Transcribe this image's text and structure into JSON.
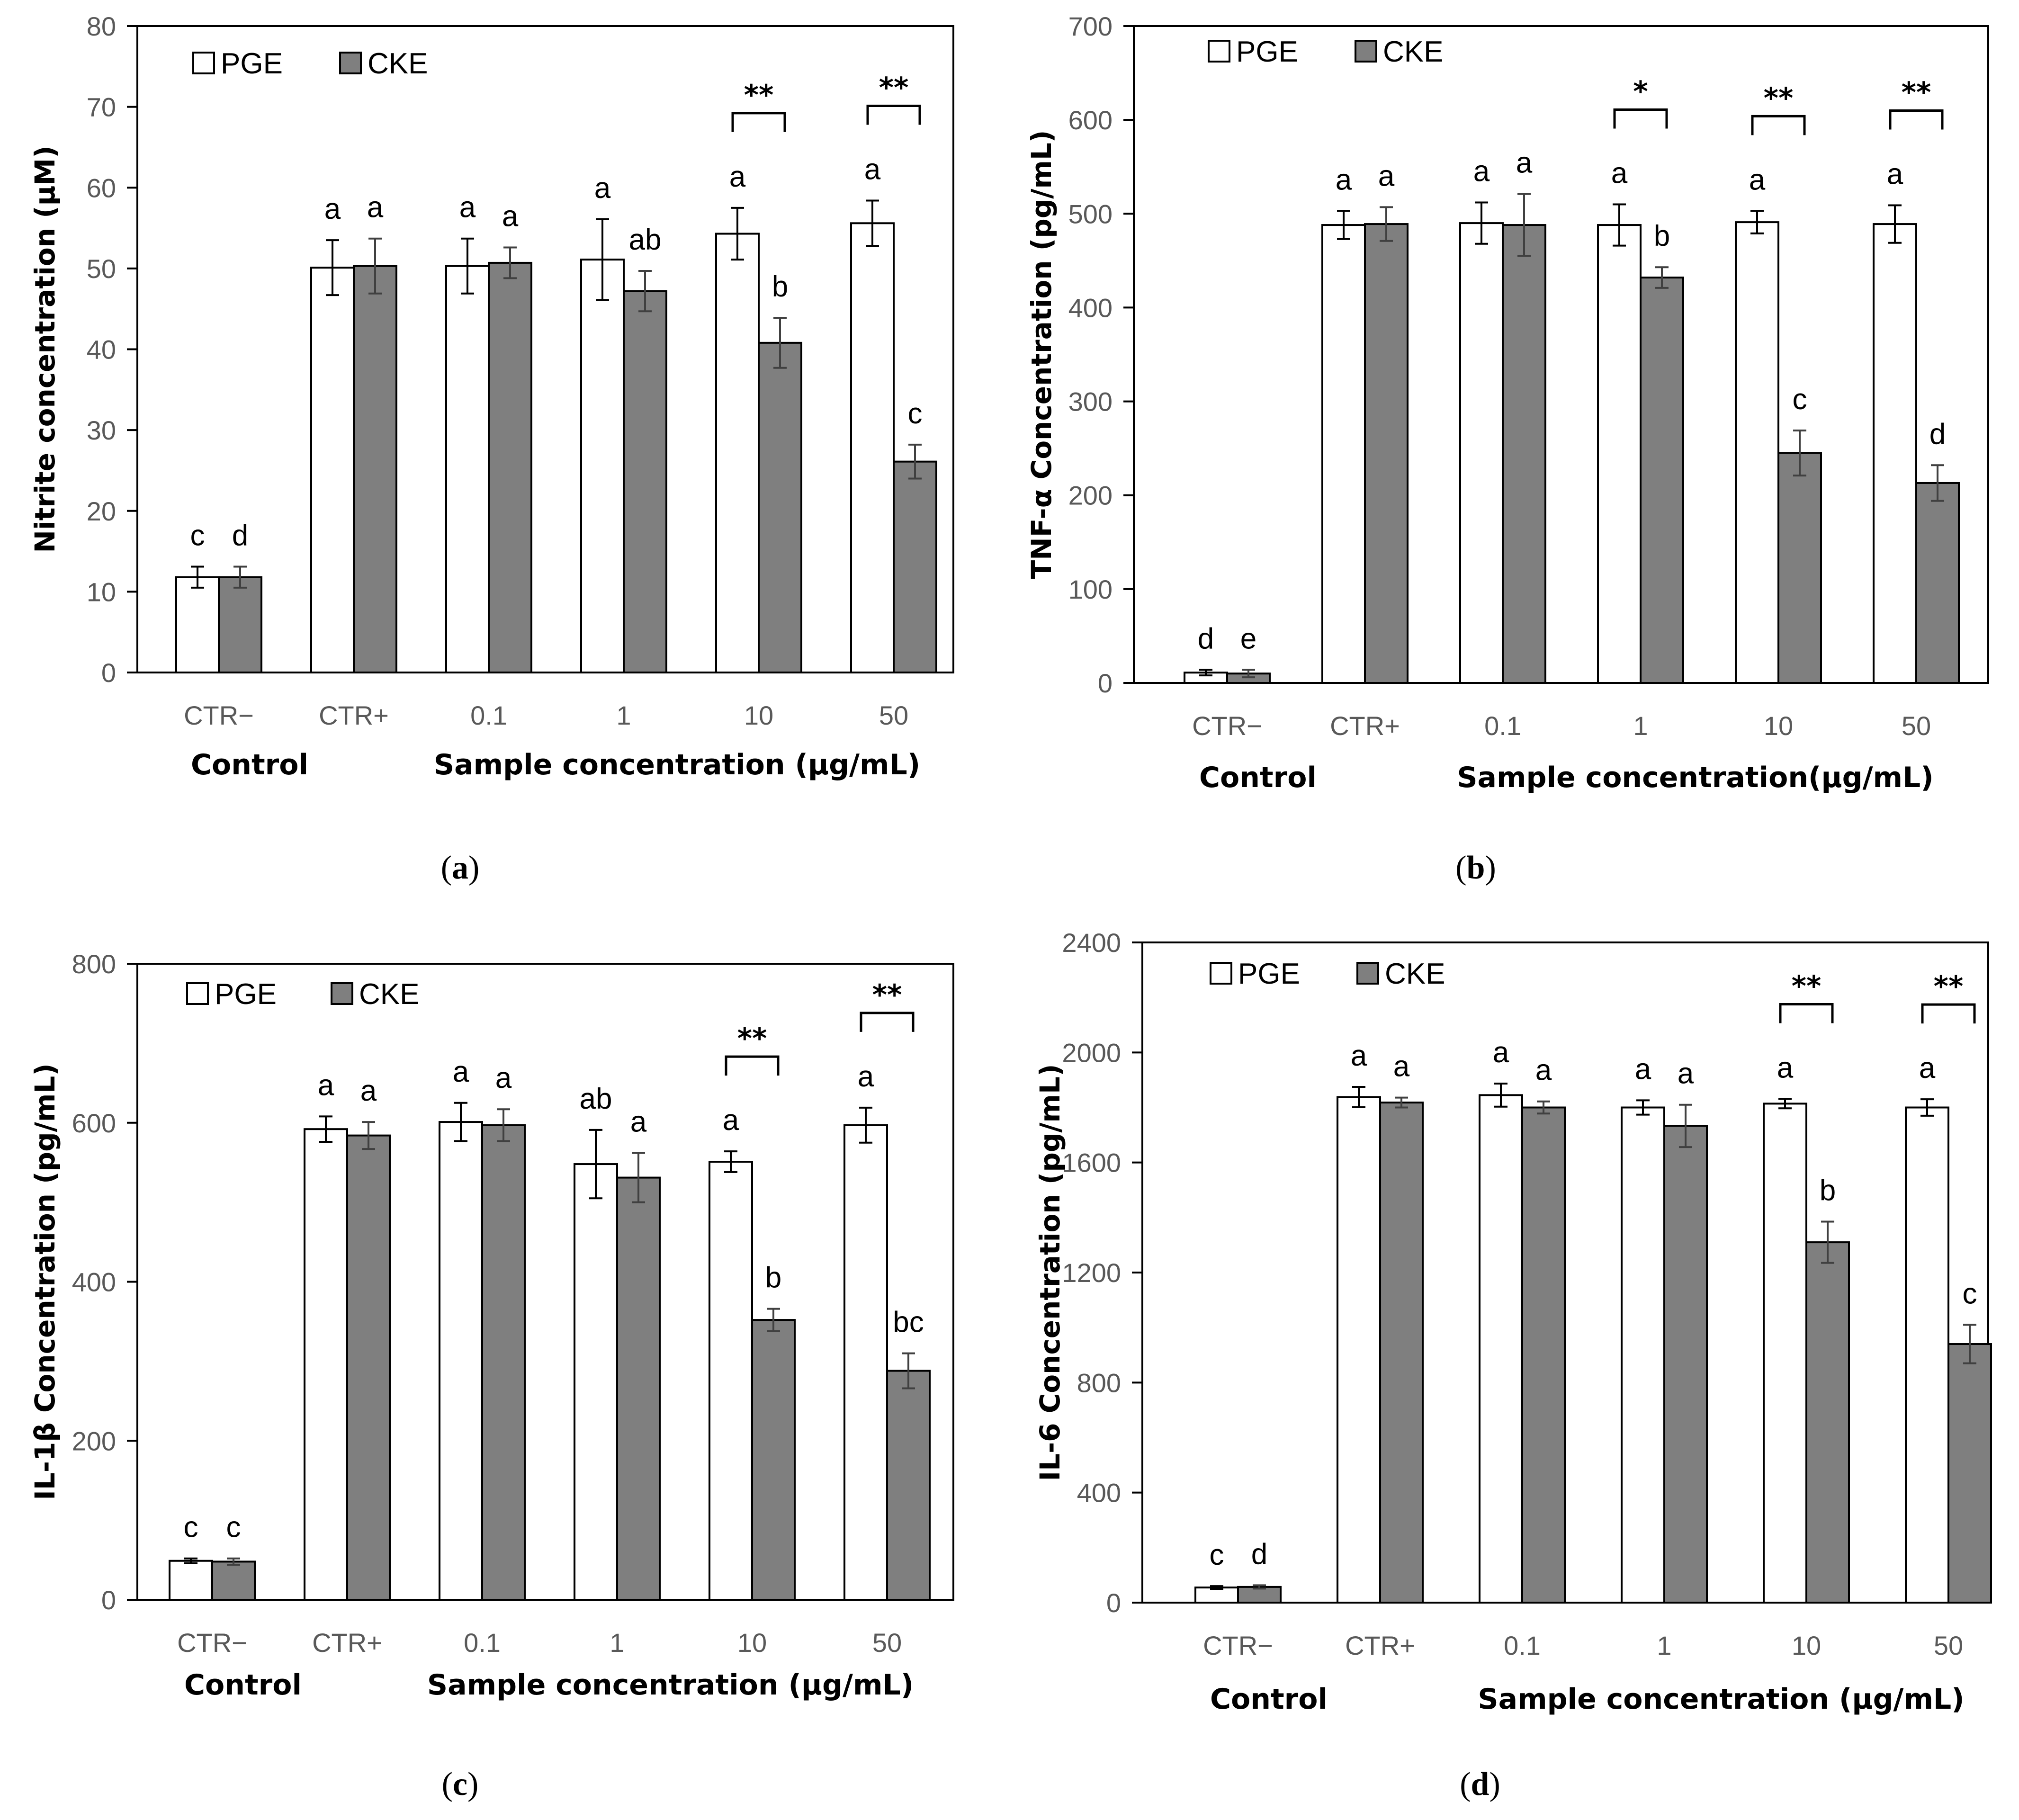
{
  "chart_data": [
    {
      "type": "bar",
      "panel_label": "a",
      "ylabel": "Nitrite concentration (μM)",
      "ylim": [
        0,
        80
      ],
      "yticks": [
        0,
        10,
        20,
        30,
        40,
        50,
        60,
        70,
        80
      ],
      "categories": [
        "CTR−",
        "CTR+",
        "0.1",
        "1",
        "10",
        "50"
      ],
      "group_labels": {
        "control": "Control",
        "sample": "Sample concentration (μg/mL)"
      },
      "legend": [
        {
          "name": "PGE",
          "color": "#ffffff"
        },
        {
          "name": "CKE",
          "color": "#7f7f7f"
        }
      ],
      "series": [
        {
          "name": "PGE",
          "color": "#ffffff",
          "values": [
            11.8,
            50.1,
            50.3,
            51.1,
            54.3,
            55.6
          ],
          "errors": [
            1.3,
            3.4,
            3.4,
            5.0,
            3.2,
            2.8
          ],
          "letters": [
            "c",
            "a",
            "a",
            "a",
            "a",
            "a"
          ]
        },
        {
          "name": "CKE",
          "color": "#7f7f7f",
          "values": [
            11.8,
            50.3,
            50.7,
            47.2,
            40.8,
            26.1
          ],
          "errors": [
            1.3,
            3.4,
            1.9,
            2.5,
            3.1,
            2.1
          ],
          "letters": [
            "d",
            "a",
            "a",
            "ab",
            "b",
            "c"
          ]
        }
      ],
      "significance": [
        {
          "category": 4,
          "label": "**"
        },
        {
          "category": 5,
          "label": "**"
        }
      ]
    },
    {
      "type": "bar",
      "panel_label": "b",
      "ylabel": "TNF-α Concentration  (pg/mL)",
      "ylim": [
        0,
        700
      ],
      "yticks": [
        0,
        100,
        200,
        300,
        400,
        500,
        600,
        700
      ],
      "categories": [
        "CTR−",
        "CTR+",
        "0.1",
        "1",
        "10",
        "50"
      ],
      "group_labels": {
        "control": "Control",
        "sample": "Sample concentration(μg/mL)"
      },
      "legend": [
        {
          "name": "PGE",
          "color": "#ffffff"
        },
        {
          "name": "CKE",
          "color": "#7f7f7f"
        }
      ],
      "series": [
        {
          "name": "PGE",
          "color": "#ffffff",
          "values": [
            11,
            488,
            490,
            488,
            491,
            489
          ],
          "errors": [
            3,
            15,
            22,
            22,
            12,
            20
          ],
          "letters": [
            "d",
            "a",
            "a",
            "a",
            "a",
            "a"
          ]
        },
        {
          "name": "CKE",
          "color": "#7f7f7f",
          "values": [
            10,
            489,
            488,
            432,
            245,
            213
          ],
          "errors": [
            4,
            18,
            33,
            11,
            24,
            19
          ],
          "letters": [
            "e",
            "a",
            "a",
            "b",
            "c",
            "d"
          ]
        }
      ],
      "significance": [
        {
          "category": 3,
          "label": "*"
        },
        {
          "category": 4,
          "label": "**"
        },
        {
          "category": 5,
          "label": "**"
        }
      ]
    },
    {
      "type": "bar",
      "panel_label": "c",
      "ylabel": "IL-1β Concentration  (pg/mL)",
      "ylim": [
        0,
        800
      ],
      "yticks": [
        0,
        200,
        400,
        600,
        800
      ],
      "categories": [
        "CTR−",
        "CTR+",
        "0.1",
        "1",
        "10",
        "50"
      ],
      "group_labels": {
        "control": "Control",
        "sample": "Sample concentration (μg/mL)"
      },
      "legend": [
        {
          "name": "PGE",
          "color": "#ffffff"
        },
        {
          "name": "CKE",
          "color": "#7f7f7f"
        }
      ],
      "series": [
        {
          "name": "PGE",
          "color": "#ffffff",
          "values": [
            49,
            592,
            601,
            548,
            551,
            597
          ],
          "errors": [
            3,
            16,
            24,
            43,
            13,
            22
          ],
          "letters": [
            "c",
            "a",
            "a",
            "ab",
            "a",
            "a"
          ]
        },
        {
          "name": "CKE",
          "color": "#7f7f7f",
          "values": [
            48,
            584,
            597,
            531,
            352,
            288
          ],
          "errors": [
            4,
            17,
            20,
            31,
            14,
            22
          ],
          "letters": [
            "c",
            "a",
            "a",
            "a",
            "b",
            "bc"
          ]
        }
      ],
      "significance": [
        {
          "category": 4,
          "label": "**"
        },
        {
          "category": 5,
          "label": "**"
        }
      ]
    },
    {
      "type": "bar",
      "panel_label": "d",
      "ylabel": "IL-6 Concentration  (pg/mL)",
      "ylim": [
        0,
        2400
      ],
      "yticks": [
        0,
        400,
        800,
        1200,
        1600,
        2000,
        2400
      ],
      "categories": [
        "CTR−",
        "CTR+",
        "0.1",
        "1",
        "10",
        "50"
      ],
      "group_labels": {
        "control": "Control",
        "sample": "Sample concentration (μg/mL)"
      },
      "legend": [
        {
          "name": "PGE",
          "color": "#ffffff"
        },
        {
          "name": "CKE",
          "color": "#7f7f7f"
        }
      ],
      "series": [
        {
          "name": "PGE",
          "color": "#ffffff",
          "values": [
            55,
            1838,
            1845,
            1800,
            1814,
            1800
          ],
          "errors": [
            5,
            37,
            42,
            26,
            17,
            30
          ],
          "letters": [
            "c",
            "a",
            "a",
            "a",
            "a",
            "a"
          ]
        },
        {
          "name": "CKE",
          "color": "#7f7f7f",
          "values": [
            57,
            1818,
            1800,
            1733,
            1310,
            940
          ],
          "errors": [
            6,
            18,
            22,
            77,
            75,
            70
          ],
          "letters": [
            "d",
            "a",
            "a",
            "a",
            "b",
            "c"
          ]
        }
      ],
      "significance": [
        {
          "category": 4,
          "label": "**"
        },
        {
          "category": 5,
          "label": "**"
        }
      ]
    }
  ]
}
